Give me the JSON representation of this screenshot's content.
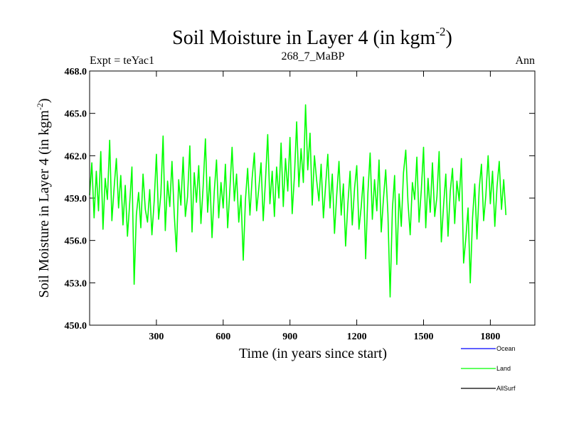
{
  "chart_data": {
    "type": "line",
    "title_main": "Soil Moisture in Layer 4 (in kgm",
    "title_sup": "-2",
    "title_close": ")",
    "subtitle_left": "Expt = teYac1",
    "subtitle_center": "268_7_MaBP",
    "subtitle_right": "Ann",
    "xlabel": "Time (in years since start)",
    "ylabel_main": "Soil Moisture in Layer 4 (in kgm",
    "ylabel_sup": "-2",
    "ylabel_close": ")",
    "xlim": [
      0,
      2000
    ],
    "ylim": [
      450.0,
      468.0
    ],
    "xticks": [
      300,
      600,
      900,
      1200,
      1500,
      1800
    ],
    "xtick_labels": [
      "300",
      "600",
      "900",
      "1200",
      "1500",
      "1800"
    ],
    "yticks": [
      450,
      453,
      456,
      459,
      462,
      465,
      468
    ],
    "ytick_labels": [
      "450.0",
      "453.0",
      "456.0",
      "459.0",
      "462.0",
      "465.0",
      "468.0"
    ],
    "legend": [
      {
        "name": "Ocean",
        "color": "#0000ff"
      },
      {
        "name": "Land",
        "color": "#00ff00"
      },
      {
        "name": "AllSurf",
        "color": "#000000"
      }
    ],
    "series": [
      {
        "name": "Land",
        "color": "#00ff00",
        "x_start": 0,
        "x_step": 10,
        "values": [
          459.2,
          461.5,
          457.6,
          460.9,
          458.1,
          462.3,
          456.8,
          460.4,
          458.9,
          463.1,
          457.4,
          459.7,
          461.8,
          458.3,
          460.6,
          457.1,
          459.9,
          456.3,
          458.6,
          461.2,
          452.9,
          457.8,
          459.4,
          456.9,
          460.7,
          458.2,
          457.3,
          459.6,
          456.4,
          458.8,
          462.1,
          457.5,
          459.3,
          463.4,
          456.7,
          460.2,
          458.4,
          461.6,
          457.9,
          455.2,
          460.3,
          458.5,
          461.9,
          457.7,
          459.1,
          462.7,
          456.6,
          460.8,
          458.7,
          461.3,
          457.2,
          459.8,
          463.2,
          458.0,
          460.5,
          456.2,
          459.5,
          461.7,
          457.6,
          460.1,
          458.3,
          461.4,
          456.9,
          459.6,
          462.6,
          458.8,
          460.7,
          457.3,
          459.2,
          454.6,
          458.9,
          461.1,
          457.8,
          460.4,
          462.2,
          458.1,
          459.7,
          461.5,
          457.4,
          460.3,
          463.5,
          458.6,
          460.9,
          457.7,
          461.2,
          459.0,
          462.9,
          458.4,
          461.8,
          459.5,
          463.3,
          457.9,
          460.6,
          464.4,
          459.8,
          462.5,
          460.1,
          465.6,
          461.0,
          463.6,
          458.5,
          462.0,
          460.2,
          458.8,
          461.4,
          457.6,
          459.9,
          462.1,
          458.3,
          460.7,
          456.5,
          459.2,
          461.6,
          457.8,
          460.0,
          455.6,
          458.6,
          460.9,
          457.1,
          459.7,
          461.3,
          456.8,
          458.4,
          460.5,
          454.7,
          459.4,
          462.2,
          457.5,
          460.3,
          458.1,
          461.7,
          456.6,
          459.0,
          461.0,
          457.9,
          452.0,
          458.2,
          460.6,
          454.3,
          459.3,
          457.0,
          460.8,
          462.4,
          458.7,
          456.4,
          460.1,
          458.9,
          461.9,
          457.3,
          459.6,
          462.6,
          456.9,
          460.4,
          458.0,
          461.5,
          457.7,
          459.1,
          462.3,
          455.9,
          458.5,
          460.7,
          456.3,
          459.5,
          461.1,
          457.2,
          460.2,
          458.8,
          461.8,
          454.4,
          456.2,
          458.3,
          453.0,
          457.6,
          460.0,
          456.1,
          459.7,
          461.4,
          457.4,
          459.2,
          462.0,
          458.6,
          460.9,
          457.0,
          459.8,
          461.6,
          458.2,
          460.3,
          457.8
        ]
      }
    ]
  }
}
